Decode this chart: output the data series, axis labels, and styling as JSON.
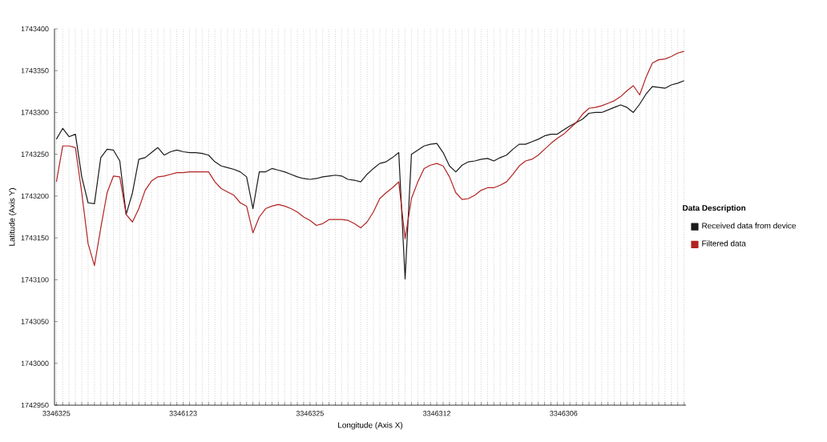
{
  "chart_data": {
    "type": "line",
    "xlabel": "Longitude (Axis X)",
    "ylabel": "Latitude (Axis Y)",
    "legend_title": "Data Description",
    "categories": [
      "3346325",
      null,
      null,
      null,
      null,
      null,
      null,
      null,
      null,
      null,
      null,
      null,
      null,
      null,
      null,
      null,
      null,
      null,
      null,
      null,
      "3346123",
      null,
      null,
      null,
      null,
      null,
      null,
      null,
      null,
      null,
      null,
      null,
      null,
      null,
      null,
      null,
      null,
      null,
      null,
      null,
      "3346325",
      null,
      null,
      null,
      null,
      null,
      null,
      null,
      null,
      null,
      null,
      null,
      null,
      null,
      null,
      null,
      null,
      null,
      null,
      null,
      "3346312",
      null,
      null,
      null,
      null,
      null,
      null,
      null,
      null,
      null,
      null,
      null,
      null,
      null,
      null,
      null,
      null,
      null,
      null,
      null,
      "3346306",
      null,
      null,
      null,
      null,
      null,
      null,
      null,
      null,
      null,
      null,
      null,
      null,
      null,
      null,
      null,
      null,
      null,
      null,
      null
    ],
    "series": [
      {
        "name": "Received data from device",
        "color": "#1a1a1a",
        "values": [
          1743268,
          1743281,
          1743271,
          1743274,
          1743223,
          1743192,
          1743191,
          1743246,
          1743256,
          1743255,
          1743242,
          1743178,
          1743204,
          1743244,
          1743246,
          1743252,
          1743258,
          1743249,
          1743253,
          1743255,
          1743253,
          1743252,
          1743252,
          1743251,
          1743249,
          1743241,
          1743236,
          1743234,
          1743232,
          1743229,
          1743223,
          1743185,
          1743229,
          1743229,
          1743233,
          1743231,
          1743229,
          1743226,
          1743223,
          1743221,
          1743220,
          1743221,
          1743223,
          1743224,
          1743225,
          1743224,
          1743220,
          1743219,
          1743217,
          1743226,
          1743233,
          1743239,
          1743241,
          1743246,
          1743252,
          1743101,
          1743250,
          1743255,
          1743260,
          1743262,
          1743263,
          1743252,
          1743236,
          1743229,
          1743237,
          1743241,
          1743242,
          1743244,
          1743245,
          1743242,
          1743246,
          1743249,
          1743256,
          1743262,
          1743262,
          1743265,
          1743268,
          1743272,
          1743274,
          1743274,
          1743279,
          1743284,
          1743288,
          1743292,
          1743299,
          1743300,
          1743300,
          1743303,
          1743306,
          1743309,
          1743306,
          1743300,
          1743310,
          1743322,
          1743331,
          1743330,
          1743329,
          1743333,
          1743335,
          1743338
        ]
      },
      {
        "name": "Filtered data",
        "color": "#b22222",
        "values": [
          1743217,
          1743260,
          1743260,
          1743258,
          1743204,
          1743143,
          1743117,
          1743162,
          1743204,
          1743224,
          1743223,
          1743178,
          1743169,
          1743185,
          1743207,
          1743218,
          1743223,
          1743224,
          1743226,
          1743228,
          1743228,
          1743229,
          1743229,
          1743229,
          1743229,
          1743217,
          1743209,
          1743205,
          1743201,
          1743192,
          1743188,
          1743156,
          1743175,
          1743185,
          1743188,
          1743190,
          1743188,
          1743185,
          1743181,
          1743175,
          1743171,
          1743165,
          1743167,
          1743172,
          1743172,
          1743172,
          1743171,
          1743167,
          1743162,
          1743169,
          1743181,
          1743197,
          1743204,
          1743210,
          1743217,
          1743149,
          1743197,
          1743217,
          1743233,
          1743237,
          1743239,
          1743236,
          1743223,
          1743204,
          1743196,
          1743197,
          1743201,
          1743207,
          1743210,
          1743210,
          1743213,
          1743217,
          1743226,
          1743236,
          1743242,
          1743244,
          1743249,
          1743256,
          1743263,
          1743269,
          1743274,
          1743281,
          1743288,
          1743298,
          1743305,
          1743306,
          1743308,
          1743311,
          1743314,
          1743319,
          1743326,
          1743332,
          1743321,
          1743342,
          1743359,
          1743363,
          1743364,
          1743367,
          1743371,
          1743373
        ]
      }
    ],
    "ylim": [
      1742950,
      1743400
    ],
    "yticks": [
      1742950,
      1743000,
      1743050,
      1743100,
      1743150,
      1743200,
      1743250,
      1743300,
      1743350,
      1743400
    ],
    "grid": "x",
    "legend": "right",
    "marker": "none",
    "line_style": "solid"
  }
}
